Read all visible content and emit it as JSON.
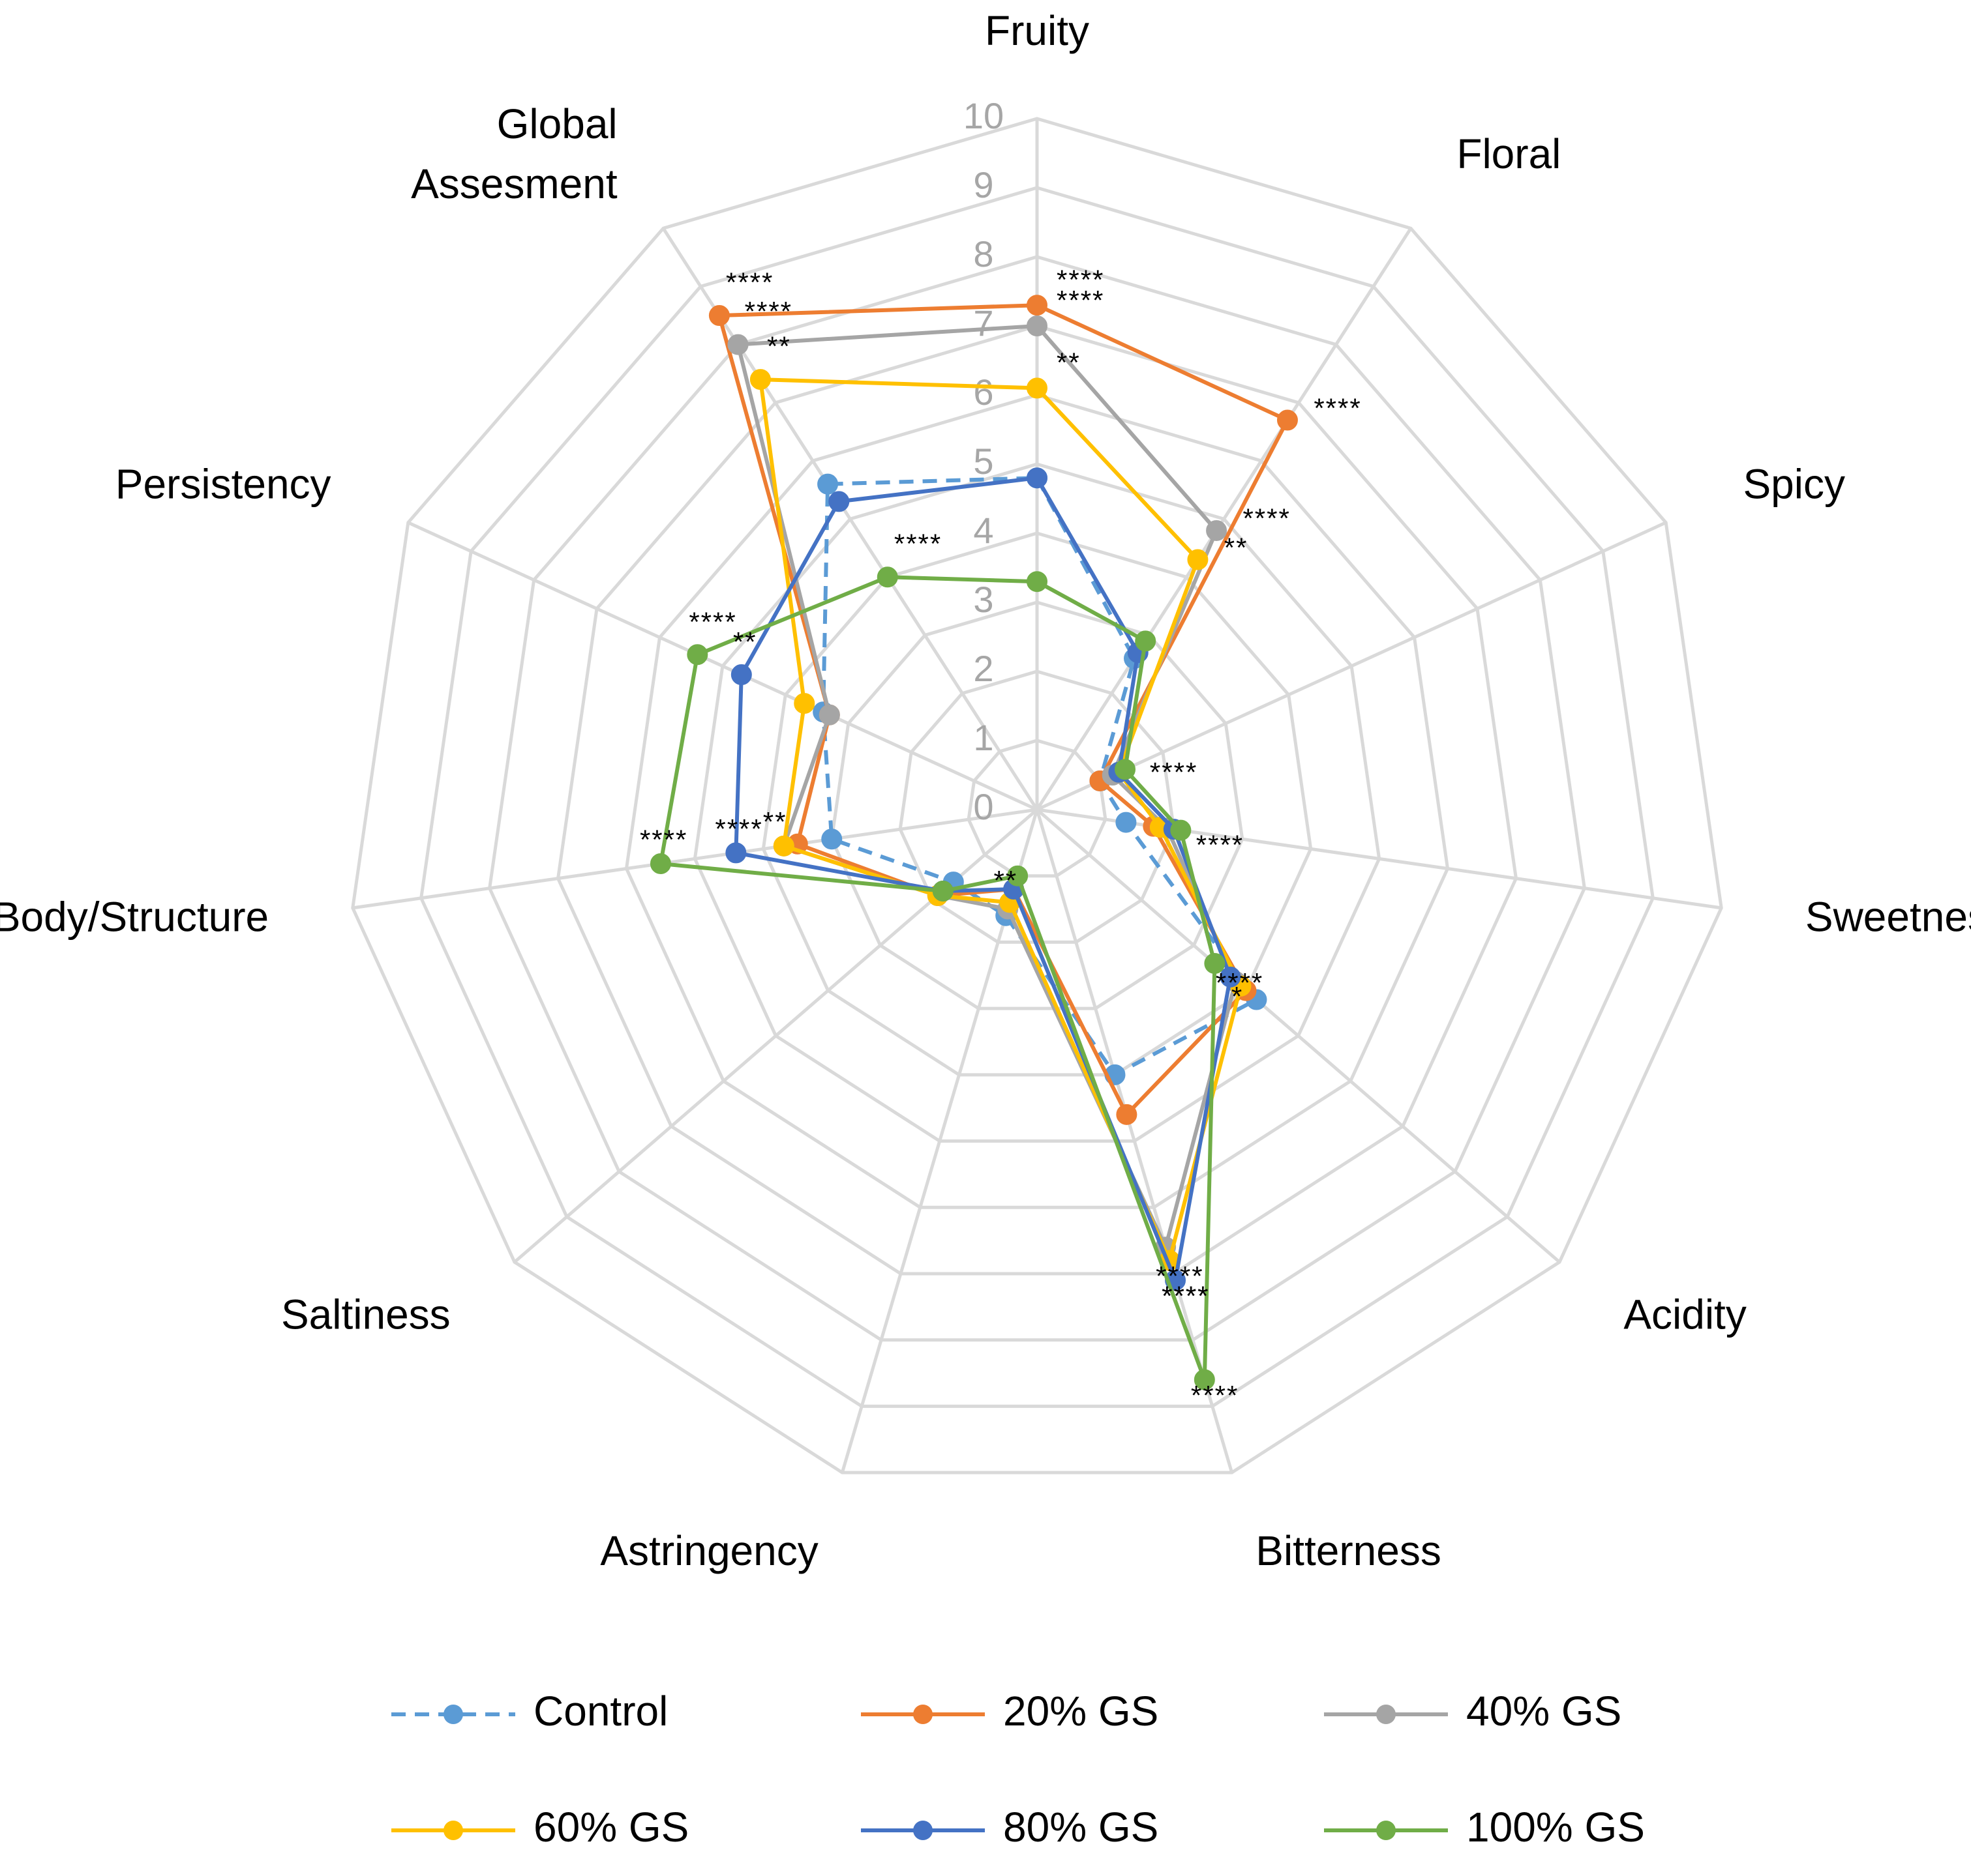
{
  "chart_data": {
    "type": "radar",
    "title": "",
    "axes": [
      "Fruity",
      "Floral",
      "Spicy",
      "Sweetness",
      "Acidity",
      "Bitterness",
      "Astringency",
      "Saltiness",
      "Body/Structure",
      "Persistency",
      "Global Assesment"
    ],
    "axis_label_lines": [
      [
        "Fruity"
      ],
      [
        "Floral"
      ],
      [
        "Spicy"
      ],
      [
        "Sweetness"
      ],
      [
        "Acidity"
      ],
      [
        "Bitterness"
      ],
      [
        "Astringency"
      ],
      [
        "Saltiness"
      ],
      [
        "Body/Structure"
      ],
      [
        "Persistency"
      ],
      [
        "Global",
        "Assesment"
      ]
    ],
    "scale": {
      "min": 0,
      "max": 10,
      "ticks": [
        "0",
        "1",
        "2",
        "3",
        "4",
        "5",
        "6",
        "7",
        "8",
        "9",
        "10"
      ]
    },
    "grid": true,
    "legend_position": "bottom",
    "series": [
      {
        "name": "Control",
        "color": "#5b9bd5",
        "dashed": true,
        "values": [
          4.8,
          2.6,
          1.0,
          1.3,
          4.2,
          4.0,
          1.6,
          1.6,
          3.0,
          3.4,
          5.6
        ]
      },
      {
        "name": "20% GS",
        "color": "#ed7d31",
        "dashed": false,
        "values": [
          7.3,
          6.7,
          1.0,
          1.7,
          4.0,
          4.6,
          1.2,
          1.9,
          3.5,
          3.3,
          8.5
        ]
      },
      {
        "name": "40% GS",
        "color": "#a5a5a5",
        "dashed": false,
        "values": [
          7.0,
          4.8,
          1.2,
          1.9,
          3.8,
          6.6,
          1.5,
          1.9,
          3.7,
          3.3,
          8.0
        ]
      },
      {
        "name": "60% GS",
        "color": "#ffc000",
        "dashed": false,
        "values": [
          6.1,
          4.3,
          1.3,
          1.8,
          3.9,
          6.8,
          1.4,
          1.9,
          3.7,
          3.7,
          7.4
        ]
      },
      {
        "name": "80% GS",
        "color": "#4472c4",
        "dashed": false,
        "values": [
          4.8,
          2.7,
          1.3,
          2.0,
          3.7,
          7.1,
          1.2,
          1.8,
          4.4,
          4.7,
          5.3
        ]
      },
      {
        "name": "100% GS",
        "color": "#70ad47",
        "dashed": false,
        "values": [
          3.3,
          2.9,
          1.4,
          2.1,
          3.4,
          8.6,
          1.0,
          1.8,
          5.5,
          5.4,
          4.0
        ]
      }
    ],
    "significance": [
      {
        "text": "****",
        "near": {
          "axis": 0,
          "series": 1
        }
      },
      {
        "text": "****",
        "near": {
          "axis": 0,
          "series": 2
        }
      },
      {
        "text": "**",
        "near": {
          "axis": 0,
          "series": 3
        }
      },
      {
        "text": "****",
        "near": {
          "axis": 1,
          "series": 1
        }
      },
      {
        "text": "****",
        "near": {
          "axis": 1,
          "series": 2
        }
      },
      {
        "text": "**",
        "near": {
          "axis": 1,
          "series": 3
        }
      },
      {
        "text": "****",
        "near": {
          "axis": 2,
          "series": 5
        }
      },
      {
        "text": "****",
        "near": {
          "axis": 3,
          "series": 5
        }
      },
      {
        "text": "****",
        "near": {
          "axis": 4,
          "series": 5
        }
      },
      {
        "text": "*",
        "near": {
          "axis": 4,
          "series": 4
        }
      },
      {
        "text": "****",
        "near": {
          "axis": 5,
          "series": 3
        }
      },
      {
        "text": "****",
        "near": {
          "axis": 5,
          "series": 4
        }
      },
      {
        "text": "****",
        "near": {
          "axis": 5,
          "series": 4
        }
      },
      {
        "text": "****",
        "near": {
          "axis": 5,
          "series": 5
        }
      },
      {
        "text": "**",
        "near": {
          "axis": 6,
          "series": 5
        }
      },
      {
        "text": "****",
        "near": {
          "axis": 8,
          "series": 4
        }
      },
      {
        "text": "****",
        "near": {
          "axis": 8,
          "series": 5
        }
      },
      {
        "text": "**",
        "near": {
          "axis": 8,
          "series": 3
        }
      },
      {
        "text": "****",
        "near": {
          "axis": 9,
          "series": 5
        }
      },
      {
        "text": "**",
        "near": {
          "axis": 9,
          "series": 4
        }
      },
      {
        "text": "****",
        "near": {
          "axis": 10,
          "series": 1
        }
      },
      {
        "text": "****",
        "near": {
          "axis": 10,
          "series": 2
        }
      },
      {
        "text": "**",
        "near": {
          "axis": 10,
          "series": 3
        }
      },
      {
        "text": "****",
        "near": {
          "axis": 10,
          "series": 5
        }
      }
    ]
  }
}
